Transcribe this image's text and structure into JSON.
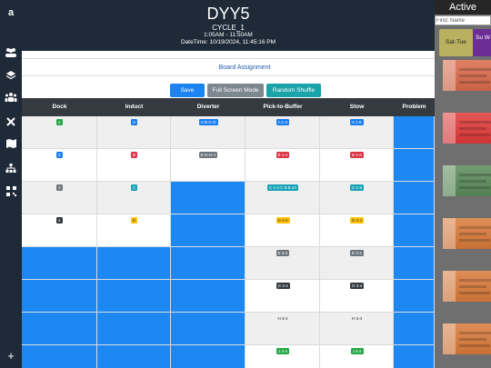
{
  "rail": {
    "icons": [
      "amazon-logo-icon",
      "users-icon",
      "layers-icon",
      "group-icon",
      "tools-icon",
      "map-icon",
      "sitemap-icon",
      "qr-grid-icon",
      "plus-icon"
    ]
  },
  "header": {
    "site": "DYY5",
    "cycle": "CYCLE_1",
    "time_window": "1:05AM - 11:50AM",
    "datetime": "DateTime: 10/19/2024, 11:45:16 PM"
  },
  "board": {
    "label": "Board Assignment"
  },
  "actions": {
    "save": "Save",
    "full_screen": "Full Screen Mode",
    "shuffle": "Random Shuffle"
  },
  "columns": [
    "Dock",
    "Induct",
    "Diverter",
    "Pick-to-Buffer",
    "Stow",
    "Problem"
  ],
  "rows": [
    [
      {
        "fill": "grey",
        "badge": "1",
        "color": "green"
      },
      {
        "fill": "grey",
        "badge": "A",
        "color": "blue"
      },
      {
        "fill": "grey",
        "badge": "A-B-C-D",
        "color": "blue"
      },
      {
        "fill": "grey",
        "badge": "A 1-4",
        "color": "blue"
      },
      {
        "fill": "grey",
        "badge": "A 1-6",
        "color": "blue"
      },
      {
        "fill": "blue"
      }
    ],
    [
      {
        "fill": "white",
        "badge": "2",
        "color": "blue"
      },
      {
        "fill": "white",
        "badge": "B",
        "color": "red"
      },
      {
        "fill": "white",
        "badge": "E-G-H-J",
        "color": "grey"
      },
      {
        "fill": "white",
        "badge": "B 1-4",
        "color": "red"
      },
      {
        "fill": "white",
        "badge": "B 1-6",
        "color": "red"
      },
      {
        "fill": "blue"
      }
    ],
    [
      {
        "fill": "grey",
        "badge": "3",
        "color": "grey"
      },
      {
        "fill": "grey",
        "badge": "C",
        "color": "teal"
      },
      {
        "fill": "blue"
      },
      {
        "fill": "grey",
        "badge": "C 1-4   C 6-8-10",
        "color": "teal"
      },
      {
        "fill": "grey",
        "badge": "C 1-6",
        "color": "teal"
      },
      {
        "fill": "blue"
      }
    ],
    [
      {
        "fill": "white",
        "badge": "4",
        "color": "dark"
      },
      {
        "fill": "white",
        "badge": "D",
        "color": "yellow"
      },
      {
        "fill": "blue"
      },
      {
        "fill": "white",
        "badge": "D 3-4",
        "color": "yellow"
      },
      {
        "fill": "white",
        "badge": "D 3-4",
        "color": "yellow"
      },
      {
        "fill": "blue"
      }
    ],
    [
      {
        "fill": "blue"
      },
      {
        "fill": "blue"
      },
      {
        "fill": "blue"
      },
      {
        "fill": "grey",
        "badge": "E 3-4",
        "color": "grey"
      },
      {
        "fill": "grey",
        "badge": "E 3-4",
        "color": "grey"
      },
      {
        "fill": "blue"
      }
    ],
    [
      {
        "fill": "blue"
      },
      {
        "fill": "blue"
      },
      {
        "fill": "blue"
      },
      {
        "fill": "white",
        "badge": "G 3-4",
        "color": "dark"
      },
      {
        "fill": "white",
        "badge": "G 3-4",
        "color": "dark"
      },
      {
        "fill": "blue"
      }
    ],
    [
      {
        "fill": "blue"
      },
      {
        "fill": "blue"
      },
      {
        "fill": "blue"
      },
      {
        "fill": "grey",
        "badge": "H 3-4",
        "color": "white"
      },
      {
        "fill": "grey",
        "badge": "H 3-4",
        "color": "white"
      },
      {
        "fill": "blue"
      }
    ],
    [
      {
        "fill": "blue"
      },
      {
        "fill": "blue"
      },
      {
        "fill": "blue"
      },
      {
        "fill": "white",
        "badge": "J 3-4",
        "color": "green"
      },
      {
        "fill": "white",
        "badge": "J 3-4",
        "color": "green"
      },
      {
        "fill": "blue"
      }
    ]
  ],
  "right_panel": {
    "title": "Active",
    "search_placeholder": "Find: Name",
    "tabs": [
      "Sat-Tue",
      "Su W"
    ],
    "cards": [
      {
        "color": "#d96a4a"
      },
      {
        "color": "#e03a3a"
      },
      {
        "color": "#5a8a5a"
      },
      {
        "color": "#d97a3a"
      },
      {
        "color": "#d97a3a"
      },
      {
        "color": "#d97a3a"
      }
    ]
  }
}
